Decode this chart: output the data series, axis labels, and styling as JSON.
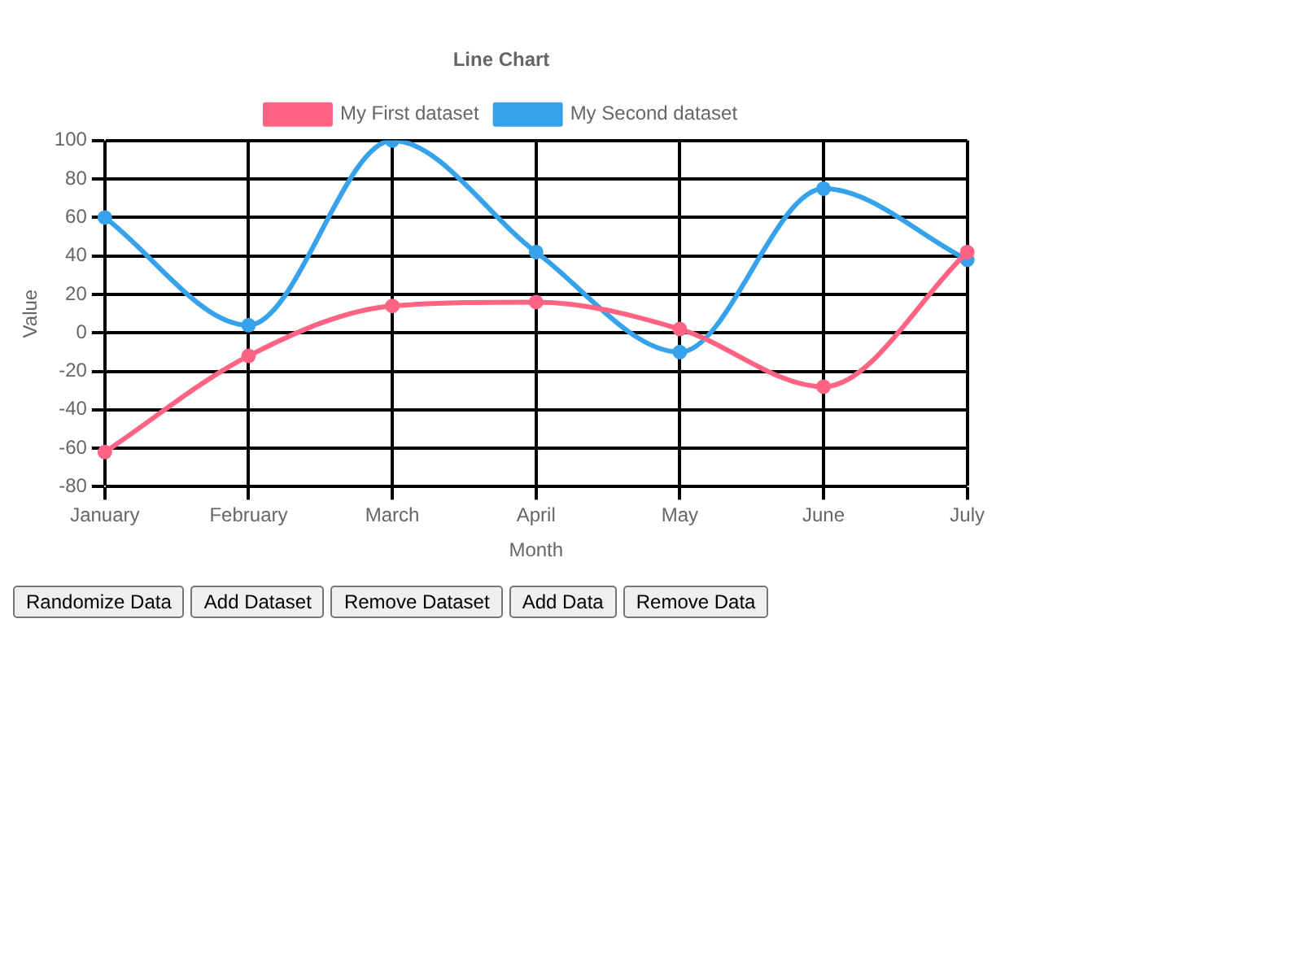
{
  "chart_data": {
    "type": "line",
    "title": "Line Chart",
    "xlabel": "Month",
    "ylabel": "Value",
    "categories": [
      "January",
      "February",
      "March",
      "April",
      "May",
      "June",
      "July"
    ],
    "series": [
      {
        "name": "My First dataset",
        "color": "#ff6384",
        "values": [
          -62,
          -12,
          14,
          16,
          2,
          -28,
          42
        ]
      },
      {
        "name": "My Second dataset",
        "color": "#36a2eb",
        "values": [
          60,
          4,
          100,
          42,
          -10,
          75,
          38
        ]
      }
    ],
    "ylim": [
      -80,
      100
    ],
    "yticks": [
      -80,
      -60,
      -40,
      -20,
      0,
      20,
      40,
      60,
      80,
      100
    ],
    "grid": true,
    "legend": "top",
    "marker": "circle",
    "line_style": "solid",
    "annotations": [
      "Randomize Data",
      "Add Dataset",
      "Remove Dataset",
      "Add Data",
      "Remove Data"
    ]
  }
}
